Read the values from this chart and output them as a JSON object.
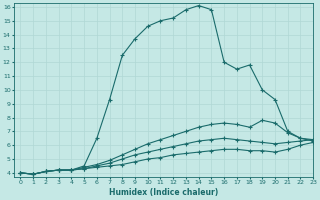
{
  "title": "",
  "xlabel": "Humidex (Indice chaleur)",
  "ylabel": "",
  "bg_color": "#c5e8e5",
  "line_color": "#1a6b6b",
  "grid_color": "#b0d8d5",
  "xlim": [
    -0.5,
    23
  ],
  "ylim": [
    3.7,
    16.3
  ],
  "yticks": [
    4,
    5,
    6,
    7,
    8,
    9,
    10,
    11,
    12,
    13,
    14,
    15,
    16
  ],
  "xticks": [
    0,
    1,
    2,
    3,
    4,
    5,
    6,
    7,
    8,
    9,
    10,
    11,
    12,
    13,
    14,
    15,
    16,
    17,
    18,
    19,
    20,
    21,
    22,
    23
  ],
  "series": [
    [
      4.0,
      3.9,
      4.1,
      4.2,
      4.2,
      4.5,
      6.5,
      9.3,
      12.5,
      13.7,
      14.6,
      15.0,
      15.2,
      15.8,
      16.1,
      15.8,
      12.0,
      11.5,
      11.8,
      10.0,
      9.3,
      7.0,
      6.5,
      6.4
    ],
    [
      4.0,
      3.9,
      4.1,
      4.2,
      4.2,
      4.4,
      4.6,
      4.9,
      5.3,
      5.7,
      6.1,
      6.4,
      6.7,
      7.0,
      7.3,
      7.5,
      7.6,
      7.5,
      7.3,
      7.8,
      7.6,
      6.9,
      6.5,
      6.3
    ],
    [
      4.0,
      3.9,
      4.1,
      4.2,
      4.2,
      4.3,
      4.5,
      4.7,
      5.0,
      5.3,
      5.5,
      5.7,
      5.9,
      6.1,
      6.3,
      6.4,
      6.5,
      6.4,
      6.3,
      6.2,
      6.1,
      6.2,
      6.3,
      6.4
    ],
    [
      4.0,
      3.9,
      4.1,
      4.2,
      4.2,
      4.3,
      4.4,
      4.5,
      4.6,
      4.8,
      5.0,
      5.1,
      5.3,
      5.4,
      5.5,
      5.6,
      5.7,
      5.7,
      5.6,
      5.6,
      5.5,
      5.7,
      6.0,
      6.2
    ]
  ]
}
